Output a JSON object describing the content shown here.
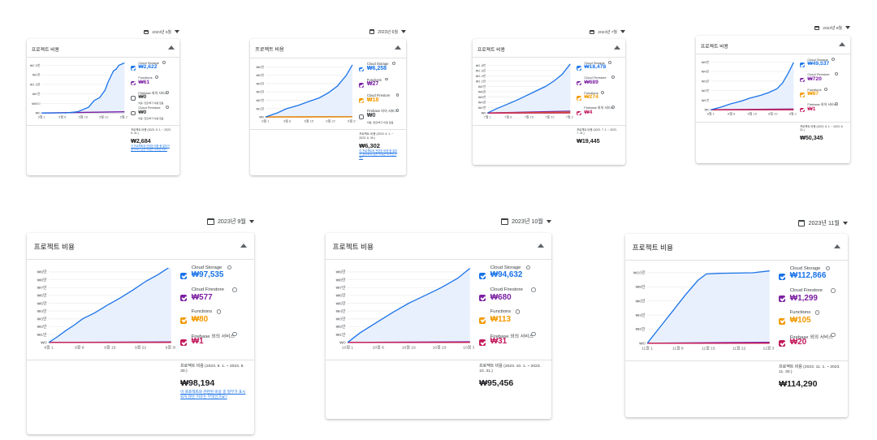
{
  "panels": [
    {
      "period": "2023년 5월",
      "title": "프로젝트 비용",
      "yticks": [
        "₩0",
        "₩500",
        "₩1천",
        "₩1.5천",
        "₩2천",
        "₩2.5천"
      ],
      "xticks": [
        "5월 1",
        "5월 8",
        "5월 15",
        "5월 22",
        "5월 29"
      ],
      "legend": [
        {
          "name": "Cloud Storage",
          "value": "₩2,622",
          "color": "#1a73e8",
          "checked": true
        },
        {
          "name": "Functions",
          "value": "₩61",
          "color": "#7b1fa2",
          "checked": true
        },
        {
          "name": "Firebase 외의 서비스",
          "value": "₩0",
          "color": "#5f6368",
          "checked": false,
          "sub": "비용: 현금/부가 비용 없음"
        },
        {
          "name": "Cloud Firestore",
          "value": "₩0",
          "color": "#5f6368",
          "checked": false,
          "sub": "비용: 현금/부가 비용 없음"
        }
      ],
      "total_label": "프로젝트 비용 (2023. 5. 1. ~ 2023. 5. 31.)",
      "total": "₩2,684",
      "note": "이 프로젝트와 관련된 비용 중 일부가 표시되지 않는 이유는 무엇인가요?"
    },
    {
      "period": "2023년 6월",
      "title": "프로젝트 비용",
      "yticks": [
        "₩0",
        "₩1천",
        "₩2천",
        "₩3천",
        "₩4천",
        "₩5천",
        "₩6천"
      ],
      "xticks": [
        "6월 1",
        "6월 8",
        "6월 15",
        "6월 22",
        "6월 29"
      ],
      "legend": [
        {
          "name": "Cloud Storage",
          "value": "₩6,258",
          "color": "#1a73e8",
          "checked": true
        },
        {
          "name": "Functions",
          "value": "₩27",
          "color": "#7b1fa2",
          "checked": true
        },
        {
          "name": "Cloud Firestore",
          "value": "₩18",
          "color": "#f29900",
          "checked": true
        },
        {
          "name": "Firebase 외의 서비스",
          "value": "₩0",
          "color": "#5f6368",
          "checked": false,
          "sub": "비용: 현금/부가 비용 없음"
        }
      ],
      "total_label": "프로젝트 비용 (2023. 6. 1. ~ 2023. 6. 30.)",
      "total": "₩6,302",
      "note": "이 프로젝트와 관련된 비용 중 일부가 표시되지 않는 이유는 무엇인가요?"
    },
    {
      "period": "2023년 7월",
      "title": "프로젝트 비용",
      "yticks": [
        "₩0",
        "₩2천",
        "₩4천",
        "₩6천",
        "₩8천",
        "₩1만",
        "₩1.2만",
        "₩1.4만",
        "₩1.6만",
        "₩1.8만"
      ],
      "xticks": [
        "7월 1",
        "7월 8",
        "7월 15",
        "7월 22",
        "7월 29"
      ],
      "legend": [
        {
          "name": "Cloud Storage",
          "value": "₩18,478",
          "color": "#1a73e8",
          "checked": true
        },
        {
          "name": "Cloud Firestore",
          "value": "₩689",
          "color": "#7b1fa2",
          "checked": true
        },
        {
          "name": "Functions",
          "value": "₩274",
          "color": "#f29900",
          "checked": true
        },
        {
          "name": "Firebase 외의 서비스",
          "value": "₩4",
          "color": "#c2185b",
          "checked": true
        }
      ],
      "total_label": "프로젝트 비용 (2023. 7. 1. ~ 2023. 7. 31.)",
      "total": "₩19,445",
      "note": ""
    },
    {
      "period": "2023년 8월",
      "title": "프로젝트 비용",
      "yticks": [
        "₩0",
        "₩1만",
        "₩2만",
        "₩3만",
        "₩4만",
        "₩5만"
      ],
      "xticks": [
        "8월 1",
        "8월 8",
        "8월 15",
        "8월 22",
        "8월 29"
      ],
      "legend": [
        {
          "name": "Cloud Storage",
          "value": "₩49,537",
          "color": "#1a73e8",
          "checked": true
        },
        {
          "name": "Cloud Firestore",
          "value": "₩720",
          "color": "#7b1fa2",
          "checked": true
        },
        {
          "name": "Functions",
          "value": "₩87",
          "color": "#f29900",
          "checked": true
        },
        {
          "name": "Firebase 외의 서비스",
          "value": "₩1",
          "color": "#c2185b",
          "checked": true
        }
      ],
      "total_label": "프로젝트 비용 (2023. 8. 1. ~ 2023. 8. 31.)",
      "total": "₩50,345",
      "note": ""
    },
    {
      "period": "2023년 9월",
      "title": "프로젝트 비용",
      "yticks": [
        "₩0",
        "₩1만",
        "₩2만",
        "₩3만",
        "₩4만",
        "₩5만",
        "₩6만",
        "₩7만",
        "₩8만",
        "₩9만"
      ],
      "xticks": [
        "9월 1",
        "9월 8",
        "9월 15",
        "9월 22",
        "9월 30"
      ],
      "legend": [
        {
          "name": "Cloud Storage",
          "value": "₩97,535",
          "color": "#1a73e8",
          "checked": true
        },
        {
          "name": "Cloud Firestore",
          "value": "₩577",
          "color": "#7b1fa2",
          "checked": true
        },
        {
          "name": "Functions",
          "value": "₩80",
          "color": "#f29900",
          "checked": true
        },
        {
          "name": "Firebase 외의 서비스",
          "value": "₩1",
          "color": "#c2185b",
          "checked": true
        }
      ],
      "total_label": "프로젝트 비용 (2023. 9. 1. ~ 2023. 9. 30.)",
      "total": "₩98,194",
      "note": "이 프로젝트와 관련된 비용 중 일부가 표시되지 않는 이유는 무엇인가요?"
    },
    {
      "period": "2023년 10월",
      "title": "프로젝트 비용",
      "yticks": [
        "₩0",
        "₩1만",
        "₩2만",
        "₩3만",
        "₩4만",
        "₩5만",
        "₩6만",
        "₩7만",
        "₩8만",
        "₩9만"
      ],
      "xticks": [
        "10월 1",
        "10월 8",
        "10월 16",
        "10월 23",
        "10월 31"
      ],
      "legend": [
        {
          "name": "Cloud Storage",
          "value": "₩94,632",
          "color": "#1a73e8",
          "checked": true
        },
        {
          "name": "Cloud Firestore",
          "value": "₩680",
          "color": "#7b1fa2",
          "checked": true
        },
        {
          "name": "Functions",
          "value": "₩113",
          "color": "#f29900",
          "checked": true
        },
        {
          "name": "Firebase 외의 서비스",
          "value": "₩31",
          "color": "#c2185b",
          "checked": true
        }
      ],
      "total_label": "프로젝트 비용 (2023. 10. 1. ~ 2023. 10. 31.)",
      "total": "₩95,456",
      "note": ""
    },
    {
      "period": "2023년 11월",
      "title": "프로젝트 비용",
      "yticks": [
        "₩0",
        "₩2만",
        "₩4만",
        "₩6만",
        "₩8만",
        "₩10만"
      ],
      "xticks": [
        "11월 1",
        "11월 8",
        "11월 15",
        "11월 22",
        "11월 30"
      ],
      "legend": [
        {
          "name": "Cloud Storage",
          "value": "₩112,866",
          "color": "#1a73e8",
          "checked": true
        },
        {
          "name": "Cloud Firestore",
          "value": "₩1,299",
          "color": "#7b1fa2",
          "checked": true
        },
        {
          "name": "Functions",
          "value": "₩105",
          "color": "#f29900",
          "checked": true
        },
        {
          "name": "Firebase 외의 서비스",
          "value": "₩20",
          "color": "#c2185b",
          "checked": true
        }
      ],
      "total_label": "프로젝트 비용 (2023. 11. 1. ~ 2023. 11. 30.)",
      "total": "₩114,290",
      "note": ""
    }
  ],
  "chart_data": [
    {
      "type": "area",
      "title": "프로젝트 비용",
      "x": [
        1,
        8,
        15,
        22,
        29,
        31
      ],
      "xlabels": [
        "5월 1",
        "5월 8",
        "5월 15",
        "5월 22",
        "5월 29"
      ],
      "ylim": [
        0,
        2500
      ],
      "series": [
        {
          "name": "Cloud Storage",
          "x": [
            1,
            10,
            14,
            18,
            20,
            22,
            24,
            25,
            27,
            28,
            29,
            31
          ],
          "values": [
            0,
            5,
            60,
            300,
            650,
            800,
            1200,
            1600,
            2200,
            2300,
            2500,
            2622
          ]
        },
        {
          "name": "Functions",
          "x": [
            1,
            31
          ],
          "values": [
            0,
            61
          ]
        }
      ]
    },
    {
      "type": "area",
      "title": "프로젝트 비용",
      "xlabels": [
        "6월 1",
        "6월 8",
        "6월 15",
        "6월 22",
        "6월 29"
      ],
      "ylim": [
        0,
        6000
      ],
      "series": [
        {
          "name": "Cloud Storage",
          "x": [
            1,
            5,
            8,
            12,
            15,
            19,
            22,
            25,
            28,
            30
          ],
          "values": [
            0,
            500,
            1000,
            1400,
            1800,
            2300,
            2900,
            3700,
            5000,
            6258
          ]
        },
        {
          "name": "Functions",
          "x": [
            1,
            30
          ],
          "values": [
            0,
            27
          ]
        },
        {
          "name": "Cloud Firestore",
          "x": [
            1,
            30
          ],
          "values": [
            0,
            18
          ]
        }
      ]
    },
    {
      "type": "area",
      "title": "프로젝트 비용",
      "xlabels": [
        "7월 1",
        "7월 8",
        "7월 15",
        "7월 22",
        "7월 29"
      ],
      "ylim": [
        0,
        18000
      ],
      "series": [
        {
          "name": "Cloud Storage",
          "x": [
            1,
            4,
            8,
            12,
            15,
            18,
            22,
            25,
            28,
            31
          ],
          "values": [
            0,
            1500,
            3200,
            5000,
            6500,
            8000,
            10000,
            12000,
            14500,
            18478
          ]
        },
        {
          "name": "Cloud Firestore",
          "x": [
            1,
            31
          ],
          "values": [
            0,
            689
          ]
        },
        {
          "name": "Functions",
          "x": [
            1,
            31
          ],
          "values": [
            0,
            274
          ]
        },
        {
          "name": "Firebase 외의 서비스",
          "x": [
            1,
            31
          ],
          "values": [
            0,
            4
          ]
        }
      ]
    },
    {
      "type": "area",
      "title": "프로젝트 비용",
      "xlabels": [
        "8월 1",
        "8월 8",
        "8월 15",
        "8월 22",
        "8월 29"
      ],
      "ylim": [
        0,
        50000
      ],
      "series": [
        {
          "name": "Cloud Storage",
          "x": [
            1,
            5,
            8,
            12,
            15,
            19,
            22,
            25,
            27,
            29,
            31
          ],
          "values": [
            0,
            3000,
            6000,
            9000,
            12000,
            15000,
            18000,
            22000,
            28000,
            38000,
            49537
          ]
        },
        {
          "name": "Cloud Firestore",
          "x": [
            1,
            31
          ],
          "values": [
            0,
            720
          ]
        },
        {
          "name": "Functions",
          "x": [
            1,
            31
          ],
          "values": [
            0,
            87
          ]
        },
        {
          "name": "Firebase 외의 서비스",
          "x": [
            1,
            31
          ],
          "values": [
            0,
            1
          ]
        }
      ]
    },
    {
      "type": "area",
      "title": "프로젝트 비용",
      "xlabels": [
        "9월 1",
        "9월 8",
        "9월 15",
        "9월 22",
        "9월 30"
      ],
      "ylim": [
        0,
        90000
      ],
      "series": [
        {
          "name": "Cloud Storage",
          "x": [
            1,
            3,
            5,
            7,
            9,
            12,
            15,
            18,
            21,
            24,
            27,
            30
          ],
          "values": [
            0,
            7000,
            15000,
            22000,
            30000,
            38000,
            48000,
            57000,
            67000,
            78000,
            87000,
            97535
          ]
        },
        {
          "name": "Cloud Firestore",
          "x": [
            1,
            30
          ],
          "values": [
            0,
            577
          ]
        },
        {
          "name": "Functions",
          "x": [
            1,
            30
          ],
          "values": [
            0,
            80
          ]
        },
        {
          "name": "Firebase 외의 서비스",
          "x": [
            1,
            30
          ],
          "values": [
            0,
            1
          ]
        }
      ]
    },
    {
      "type": "area",
      "title": "프로젝트 비용",
      "xlabels": [
        "10월 1",
        "10월 8",
        "10월 16",
        "10월 23",
        "10월 31"
      ],
      "ylim": [
        0,
        90000
      ],
      "series": [
        {
          "name": "Cloud Storage",
          "x": [
            1,
            4,
            8,
            12,
            16,
            20,
            24,
            28,
            31
          ],
          "values": [
            0,
            12000,
            25000,
            38000,
            50000,
            60000,
            70000,
            82000,
            94632
          ]
        },
        {
          "name": "Cloud Firestore",
          "x": [
            1,
            31
          ],
          "values": [
            0,
            680
          ]
        },
        {
          "name": "Functions",
          "x": [
            1,
            31
          ],
          "values": [
            0,
            113
          ]
        },
        {
          "name": "Firebase 외의 서비스",
          "x": [
            1,
            31
          ],
          "values": [
            0,
            31
          ]
        }
      ]
    },
    {
      "type": "area",
      "title": "프로젝트 비용",
      "xlabels": [
        "11월 1",
        "11월 8",
        "11월 15",
        "11월 22",
        "11월 30"
      ],
      "ylim": [
        0,
        110000
      ],
      "series": [
        {
          "name": "Cloud Storage",
          "x": [
            1,
            4,
            7,
            10,
            13,
            15,
            18,
            22,
            26,
            30
          ],
          "values": [
            0,
            25000,
            50000,
            75000,
            98000,
            108000,
            109000,
            109500,
            110000,
            112866
          ]
        },
        {
          "name": "Cloud Firestore",
          "x": [
            1,
            30
          ],
          "values": [
            0,
            1299
          ]
        },
        {
          "name": "Functions",
          "x": [
            1,
            30
          ],
          "values": [
            0,
            105
          ]
        },
        {
          "name": "Firebase 외의 서비스",
          "x": [
            1,
            30
          ],
          "values": [
            0,
            20
          ]
        }
      ]
    }
  ]
}
